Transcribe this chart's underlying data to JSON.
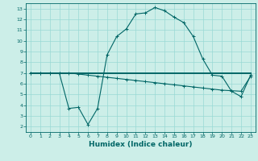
{
  "title": "",
  "xlabel": "Humidex (Indice chaleur)",
  "bg_color": "#cceee8",
  "grid_color": "#99d9d4",
  "line_color": "#006666",
  "xlim": [
    -0.5,
    23.5
  ],
  "ylim": [
    1.5,
    13.5
  ],
  "xticks": [
    0,
    1,
    2,
    3,
    4,
    5,
    6,
    7,
    8,
    9,
    10,
    11,
    12,
    13,
    14,
    15,
    16,
    17,
    18,
    19,
    20,
    21,
    22,
    23
  ],
  "yticks": [
    2,
    3,
    4,
    5,
    6,
    7,
    8,
    9,
    10,
    11,
    12,
    13
  ],
  "curve1_x": [
    0,
    1,
    2,
    3,
    4,
    5,
    6,
    7,
    8,
    9,
    10,
    11,
    12,
    13,
    14,
    15,
    16,
    17,
    18,
    19,
    20,
    21,
    22,
    23
  ],
  "curve1_y": [
    7,
    7,
    7,
    7,
    3.7,
    3.8,
    2.2,
    3.7,
    8.7,
    10.4,
    11.1,
    12.5,
    12.6,
    13.1,
    12.8,
    12.2,
    11.7,
    10.4,
    8.3,
    6.8,
    6.7,
    5.3,
    4.8,
    6.8
  ],
  "curve2_x": [
    0,
    1,
    2,
    3,
    4,
    5,
    6,
    7,
    8,
    9,
    10,
    11,
    12,
    13,
    14,
    15,
    16,
    17,
    18,
    19,
    20,
    21,
    22,
    23
  ],
  "curve2_y": [
    7.0,
    7.0,
    7.0,
    7.0,
    7.0,
    6.9,
    6.8,
    6.7,
    6.6,
    6.5,
    6.4,
    6.3,
    6.2,
    6.1,
    6.0,
    5.9,
    5.8,
    5.7,
    5.6,
    5.5,
    5.4,
    5.35,
    5.3,
    6.7
  ],
  "curve3_x": [
    0,
    23
  ],
  "curve3_y": [
    7,
    7
  ],
  "lw_main": 0.8,
  "lw_flat": 1.4,
  "marker_size": 2.5,
  "tick_fontsize": 4.5,
  "xlabel_fontsize": 6.5
}
